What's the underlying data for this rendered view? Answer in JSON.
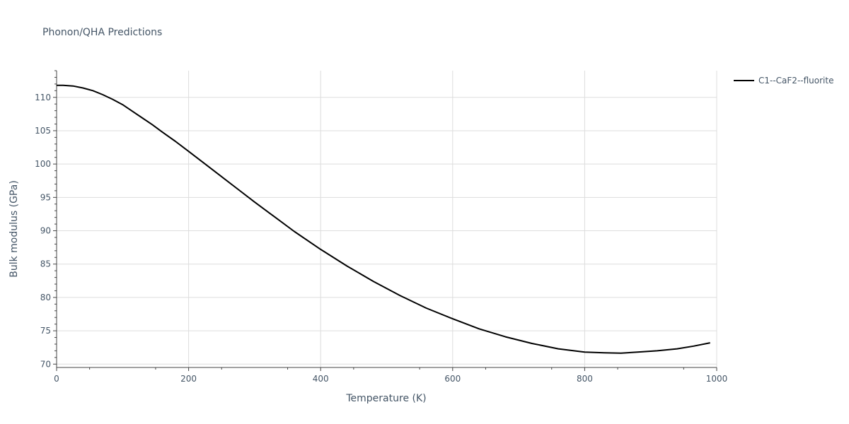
{
  "chart_data": {
    "type": "line",
    "title": "Phonon/QHA Predictions",
    "xlabel": "Temperature (K)",
    "ylabel": "Bulk modulus (GPa)",
    "xlim": [
      0,
      1000
    ],
    "ylim": [
      69.5,
      114
    ],
    "x_ticks": [
      0,
      200,
      400,
      600,
      800,
      1000
    ],
    "y_ticks": [
      70,
      75,
      80,
      85,
      90,
      95,
      100,
      105,
      110
    ],
    "grid": true,
    "legend_position": "top-right",
    "series": [
      {
        "name": "C1--CaF2--fluorite",
        "color": "#000000",
        "x": [
          0,
          10,
          25,
          40,
          55,
          70,
          85,
          100,
          115,
          130,
          145,
          160,
          180,
          200,
          225,
          250,
          275,
          300,
          330,
          360,
          400,
          440,
          480,
          520,
          560,
          600,
          640,
          680,
          720,
          760,
          800,
          830,
          855,
          880,
          910,
          940,
          965,
          990
        ],
        "y": [
          111.8,
          111.8,
          111.7,
          111.4,
          111.0,
          110.4,
          109.7,
          108.9,
          107.9,
          106.9,
          105.9,
          104.8,
          103.4,
          101.9,
          100.0,
          98.1,
          96.2,
          94.3,
          92.1,
          89.9,
          87.2,
          84.7,
          82.4,
          80.3,
          78.4,
          76.8,
          75.3,
          74.1,
          73.1,
          72.3,
          71.8,
          71.7,
          71.65,
          71.8,
          72.0,
          72.3,
          72.7,
          73.2
        ]
      }
    ]
  }
}
